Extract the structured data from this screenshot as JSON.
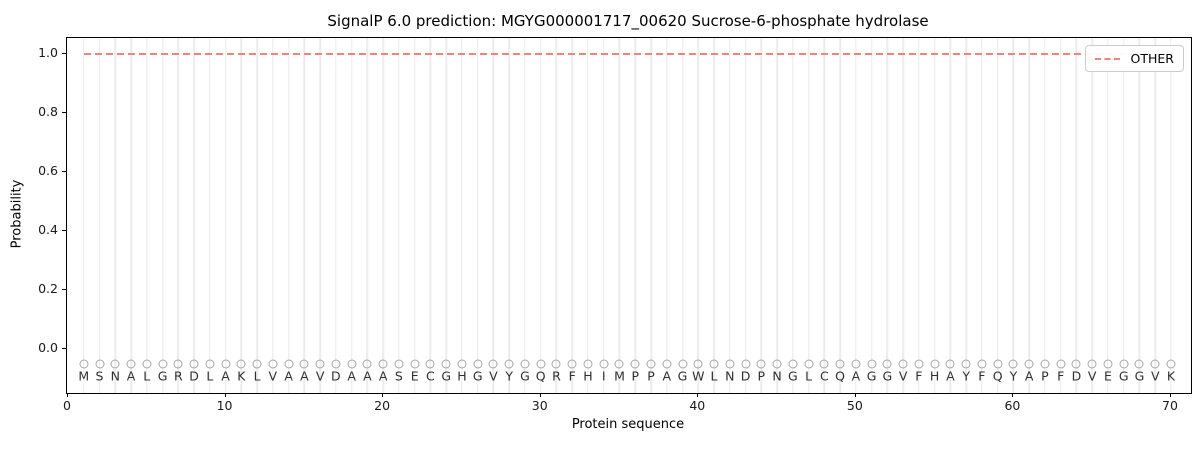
{
  "chart_data": {
    "type": "line",
    "title": "SignalP 6.0 prediction: MGYG000001717_00620 Sucrose-6-phosphate hydrolase",
    "xlabel": "Protein sequence",
    "ylabel": "Probability",
    "x_ticks": [
      0,
      10,
      20,
      30,
      40,
      50,
      60,
      70
    ],
    "y_ticks": [
      "0.0",
      "0.2",
      "0.4",
      "0.6",
      "0.8",
      "1.0"
    ],
    "xlim": [
      0,
      71.3
    ],
    "ylim": [
      -0.15,
      1.055
    ],
    "grid": "vertical gridline at every residue position",
    "legend": {
      "position": "upper right",
      "entries": [
        {
          "label": "OTHER",
          "color": "#f4807f",
          "style": "dashed"
        }
      ]
    },
    "series": [
      {
        "name": "OTHER",
        "style": "dashed",
        "color": "#f4807f",
        "x_range": [
          1,
          70
        ],
        "constant_value": 1.0,
        "note": "constant probability 1.0 across residues 1-70"
      }
    ],
    "sequence": "MSNALGRDLAKLVAAVDAAASECGHGVYGQRFHIMPPAGWLNDPNGLCQAGGVFHAYFQYAPFDVEGGVK",
    "sequence_length": 70,
    "residue_marker": {
      "symbol": "open-circle",
      "y": -0.05,
      "color": "#a6a6a6"
    }
  },
  "colors": {
    "line_red": "#f4807f",
    "grid": "#ececec",
    "circle_stroke": "#a6a6a6",
    "letter": "#2f2f2f",
    "legend_border": "#cccccc",
    "spine": "#000000"
  }
}
